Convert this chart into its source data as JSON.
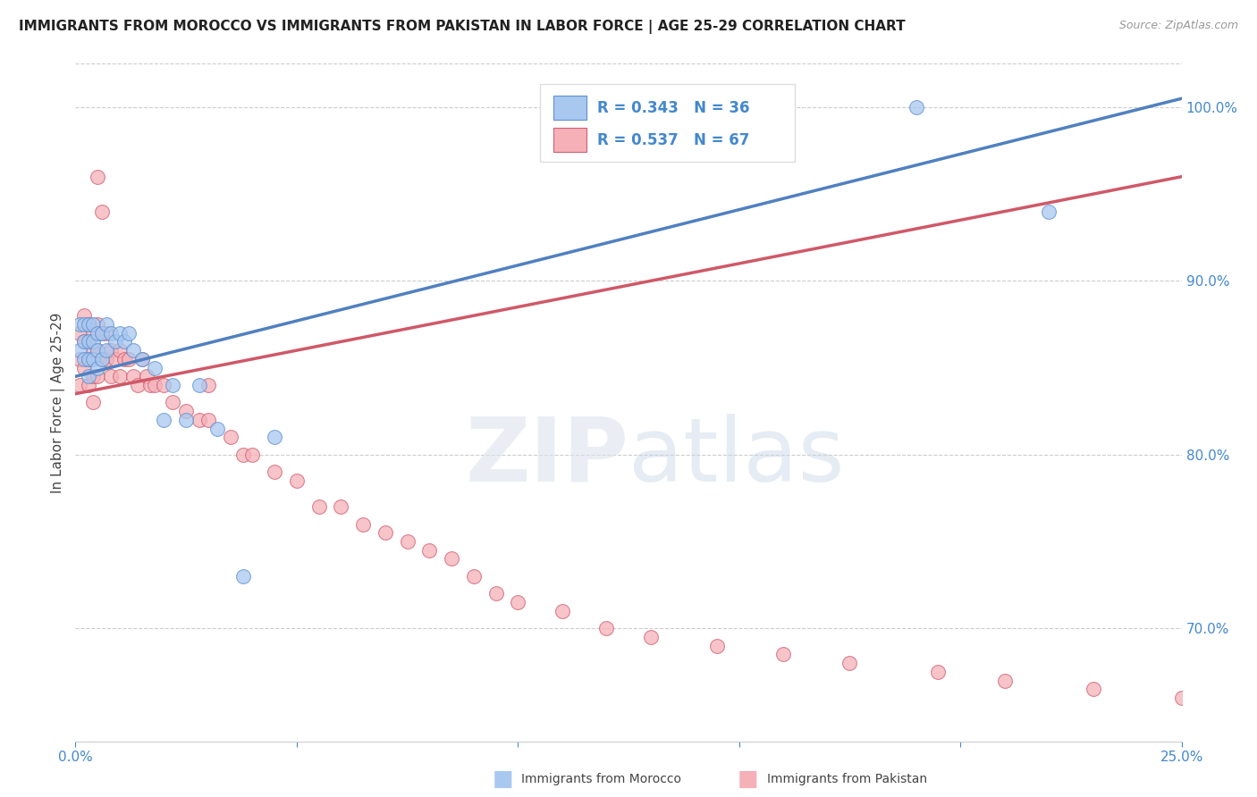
{
  "title": "IMMIGRANTS FROM MOROCCO VS IMMIGRANTS FROM PAKISTAN IN LABOR FORCE | AGE 25-29 CORRELATION CHART",
  "source": "Source: ZipAtlas.com",
  "ylabel": "In Labor Force | Age 25-29",
  "right_yticks": [
    0.7,
    0.8,
    0.9,
    1.0
  ],
  "right_yticklabels": [
    "70.0%",
    "80.0%",
    "90.0%",
    "100.0%"
  ],
  "xlim": [
    0.0,
    0.25
  ],
  "ylim": [
    0.635,
    1.025
  ],
  "morocco_color": "#a8c8f0",
  "pakistan_color": "#f5b0b8",
  "morocco_edge_color": "#6090d0",
  "pakistan_edge_color": "#d06070",
  "morocco_line_color": "#5080c0",
  "pakistan_line_color": "#d05868",
  "morocco_R": 0.343,
  "morocco_N": 36,
  "pakistan_R": 0.537,
  "pakistan_N": 67,
  "legend_label_morocco": "Immigrants from Morocco",
  "legend_label_pakistan": "Immigrants from Pakistan",
  "morocco_x": [
    0.001,
    0.001,
    0.002,
    0.002,
    0.002,
    0.003,
    0.003,
    0.003,
    0.003,
    0.004,
    0.004,
    0.004,
    0.005,
    0.005,
    0.005,
    0.006,
    0.006,
    0.007,
    0.007,
    0.008,
    0.009,
    0.01,
    0.011,
    0.012,
    0.013,
    0.015,
    0.018,
    0.02,
    0.022,
    0.025,
    0.028,
    0.032,
    0.038,
    0.045,
    0.19,
    0.22
  ],
  "morocco_y": [
    0.875,
    0.86,
    0.875,
    0.865,
    0.855,
    0.875,
    0.865,
    0.855,
    0.845,
    0.875,
    0.865,
    0.855,
    0.87,
    0.86,
    0.85,
    0.87,
    0.855,
    0.875,
    0.86,
    0.87,
    0.865,
    0.87,
    0.865,
    0.87,
    0.86,
    0.855,
    0.85,
    0.82,
    0.84,
    0.82,
    0.84,
    0.815,
    0.73,
    0.81,
    1.0,
    0.94
  ],
  "pakistan_x": [
    0.001,
    0.001,
    0.001,
    0.002,
    0.002,
    0.002,
    0.003,
    0.003,
    0.003,
    0.003,
    0.004,
    0.004,
    0.004,
    0.004,
    0.005,
    0.005,
    0.005,
    0.005,
    0.006,
    0.006,
    0.006,
    0.007,
    0.007,
    0.008,
    0.008,
    0.009,
    0.01,
    0.01,
    0.011,
    0.012,
    0.013,
    0.014,
    0.015,
    0.016,
    0.017,
    0.018,
    0.02,
    0.022,
    0.025,
    0.028,
    0.03,
    0.03,
    0.035,
    0.038,
    0.04,
    0.045,
    0.05,
    0.055,
    0.06,
    0.065,
    0.07,
    0.075,
    0.08,
    0.085,
    0.09,
    0.095,
    0.1,
    0.11,
    0.12,
    0.13,
    0.145,
    0.16,
    0.175,
    0.195,
    0.21,
    0.23,
    0.25
  ],
  "pakistan_y": [
    0.87,
    0.855,
    0.84,
    0.88,
    0.865,
    0.85,
    0.875,
    0.865,
    0.855,
    0.84,
    0.87,
    0.86,
    0.845,
    0.83,
    0.875,
    0.86,
    0.845,
    0.96,
    0.87,
    0.855,
    0.94,
    0.87,
    0.855,
    0.86,
    0.845,
    0.855,
    0.86,
    0.845,
    0.855,
    0.855,
    0.845,
    0.84,
    0.855,
    0.845,
    0.84,
    0.84,
    0.84,
    0.83,
    0.825,
    0.82,
    0.82,
    0.84,
    0.81,
    0.8,
    0.8,
    0.79,
    0.785,
    0.77,
    0.77,
    0.76,
    0.755,
    0.75,
    0.745,
    0.74,
    0.73,
    0.72,
    0.715,
    0.71,
    0.7,
    0.695,
    0.69,
    0.685,
    0.68,
    0.675,
    0.67,
    0.665,
    0.66
  ],
  "mor_line_x0": 0.0,
  "mor_line_x1": 0.25,
  "mor_line_y0": 0.845,
  "mor_line_y1": 1.005,
  "pak_line_x0": 0.0,
  "pak_line_x1": 0.25,
  "pak_line_y0": 0.835,
  "pak_line_y1": 0.96
}
